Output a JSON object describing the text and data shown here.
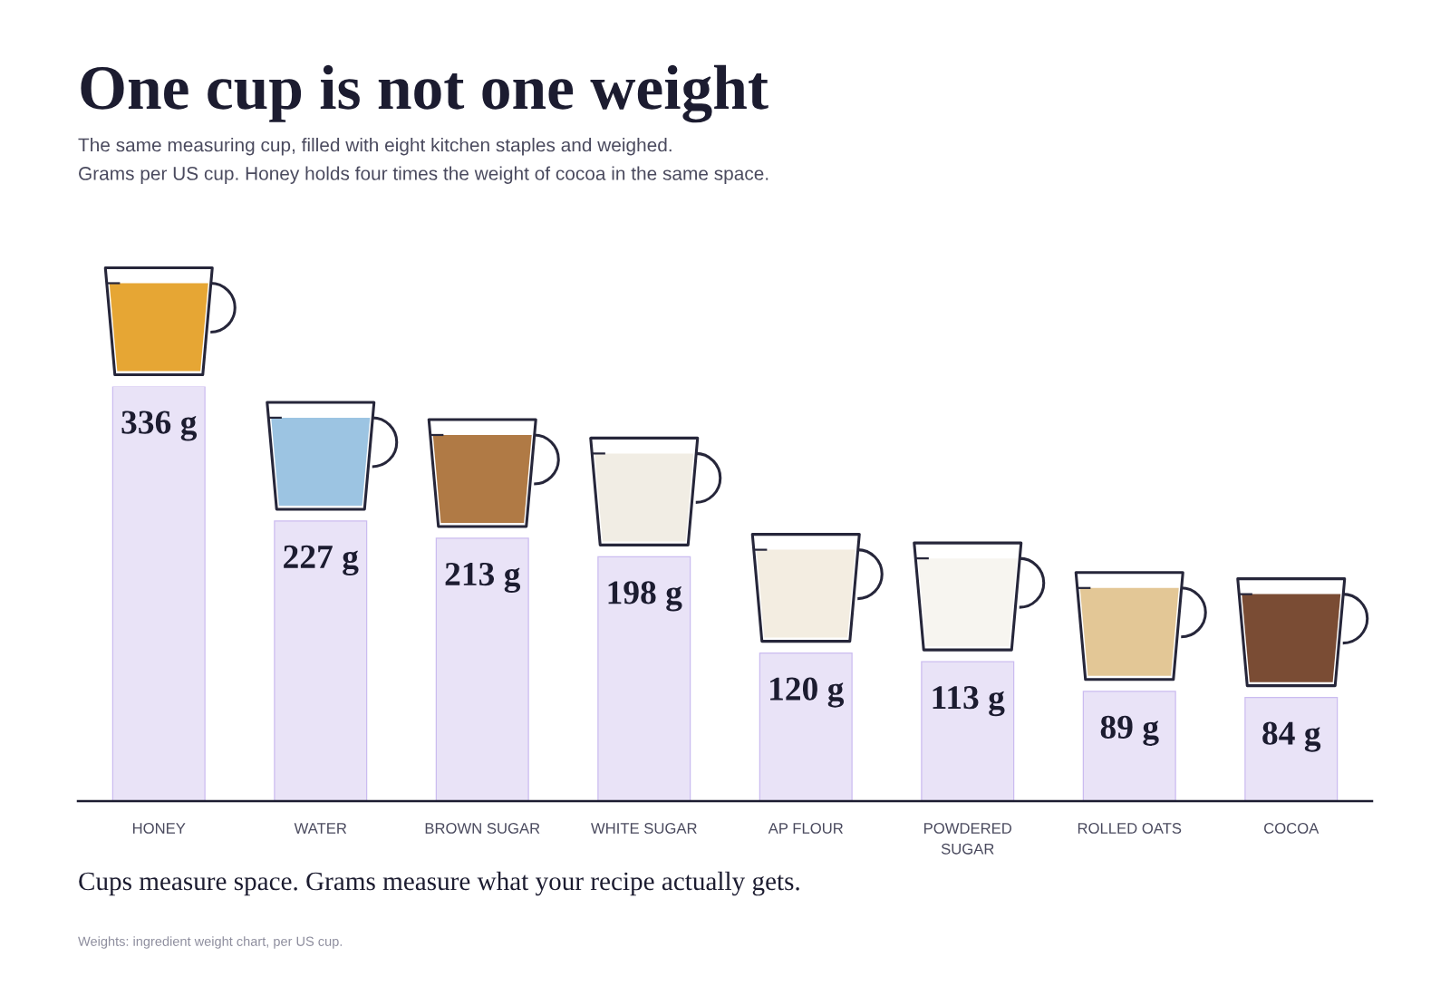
{
  "chart_data": {
    "type": "bar",
    "title": "One cup is not one weight",
    "subtitle": "The same measuring cup, filled with eight kitchen staples and weighed.\nGrams per US cup. Honey holds four times the weight of cocoa in the same space.",
    "categories": [
      "HONEY",
      "WATER",
      "BROWN SUGAR",
      "WHITE SUGAR",
      "AP FLOUR",
      "POWDERED SUGAR",
      "ROLLED OATS",
      "COCOA"
    ],
    "values": [
      336,
      227,
      213,
      198,
      120,
      113,
      89,
      84
    ],
    "value_labels": [
      "336 g",
      "227 g",
      "213 g",
      "198 g",
      "120 g",
      "113 g",
      "89 g",
      "84 g"
    ],
    "color": "#e9e3f7",
    "tick_labels": "x",
    "annotations": [
      "Cups measure space. Grams measure what your recipe actually gets.",
      "Weights: ingredient weight chart, per US cup."
    ]
  }
}
